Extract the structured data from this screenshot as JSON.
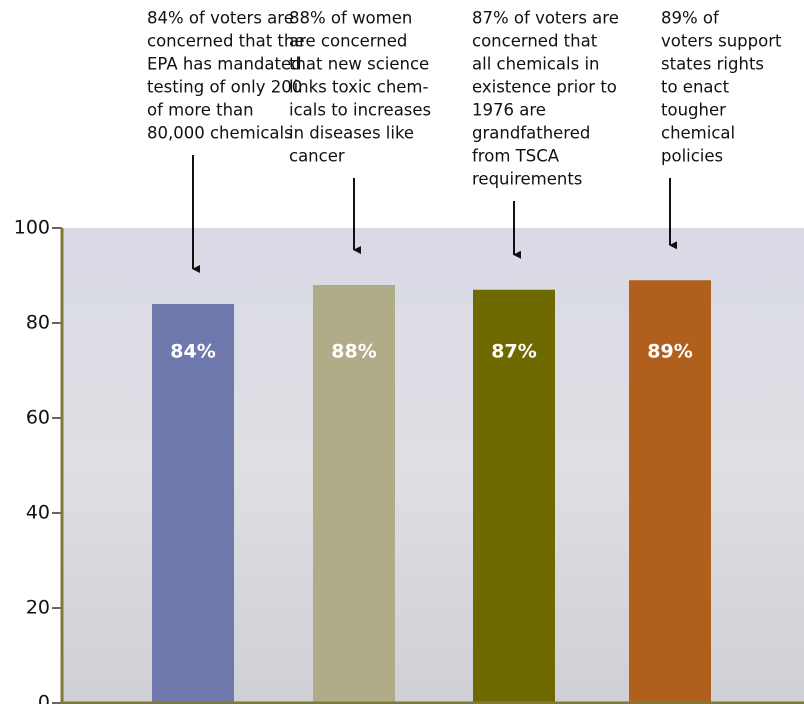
{
  "chart_data": {
    "type": "bar",
    "categories": [
      null,
      null,
      null,
      null
    ],
    "values": [
      84,
      88,
      87,
      89
    ],
    "value_labels": [
      "84%",
      "88%",
      "87%",
      "89%"
    ],
    "colors": [
      "#6f78ad",
      "#b0ac88",
      "#6f6a00",
      "#b0601c"
    ],
    "annotations": [
      [
        "84% of voters are",
        "concerned that the",
        "EPA has mandated",
        "testing of only 200",
        "of more than",
        "80,000 chemicals"
      ],
      [
        "88% of women",
        "are concerned",
        "that new science",
        "links toxic chem-",
        "icals to increases",
        "in diseases like",
        "cancer"
      ],
      [
        "87% of voters are",
        "concerned that",
        "all chemicals in",
        "existence prior to",
        "1976 are",
        "grandfathered",
        "from TSCA",
        "requirements"
      ],
      [
        "89% of",
        "voters support",
        "states rights",
        "to enact",
        "tougher",
        "chemical",
        "policies"
      ]
    ],
    "ylim": [
      0,
      100
    ],
    "yticks": [
      0,
      20,
      40,
      60,
      80,
      100
    ]
  }
}
